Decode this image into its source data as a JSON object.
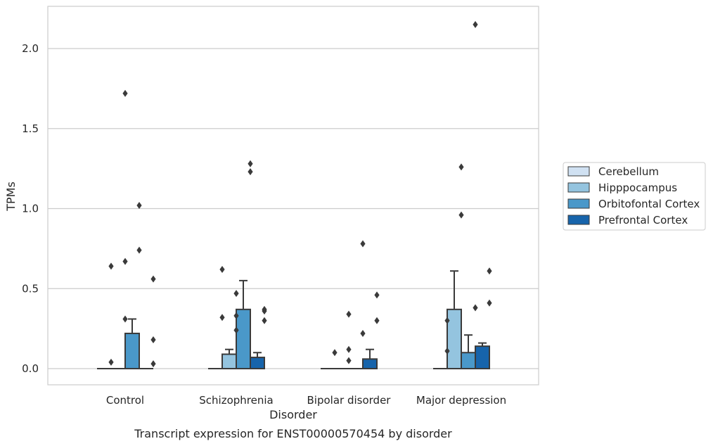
{
  "chart_data": {
    "type": "bar",
    "xlabel": "Disorder",
    "ylabel": "TPMs",
    "caption": "Transcript expression for ENST00000570454 by disorder",
    "ylim": [
      -0.1,
      2.27
    ],
    "yticks": [
      0.0,
      0.5,
      1.0,
      1.5,
      2.0
    ],
    "ytick_labels": [
      "0.0",
      "0.5",
      "1.0",
      "1.5",
      "2.0"
    ],
    "grid": true,
    "legend_position": "right",
    "categories": [
      "Control",
      "Schizophrenia",
      "Bipolar disorder",
      "Major depression"
    ],
    "series": [
      {
        "name": "Cerebellum",
        "color": "#d0e1f2",
        "values": [
          0.0,
          0.0,
          0.0,
          0.0
        ],
        "error_upper": [
          null,
          null,
          null,
          null
        ],
        "outliers": [
          [],
          [],
          [],
          []
        ]
      },
      {
        "name": "Hipppocampus",
        "color": "#94c4df",
        "values": [
          0.0,
          0.09,
          0.0,
          0.37
        ],
        "error_upper": [
          null,
          0.12,
          null,
          0.61
        ],
        "outliers": [
          [
            0.64,
            0.04
          ],
          [
            0.62,
            0.32
          ],
          [
            0.1
          ],
          [
            0.3,
            0.11
          ]
        ]
      },
      {
        "name": "Orbitofontal Cortex",
        "color": "#4a98c9",
        "values": [
          0.22,
          0.37,
          0.0,
          0.1
        ],
        "error_upper": [
          0.31,
          0.55,
          null,
          0.21
        ],
        "outliers": [
          [
            1.72,
            0.67,
            0.31
          ],
          [
            0.47,
            0.33,
            0.24
          ],
          [
            0.34,
            0.12,
            0.05
          ],
          [
            1.26,
            0.96
          ]
        ]
      },
      {
        "name": "Prefrontal Cortex",
        "color": "#1764ab",
        "values": [
          0.0,
          0.07,
          0.06,
          0.14
        ],
        "error_upper": [
          null,
          0.1,
          0.12,
          0.16
        ],
        "outliers": [
          [
            1.02,
            0.74
          ],
          [
            1.28,
            1.23
          ],
          [
            0.78,
            0.22
          ],
          [
            2.15,
            0.38
          ]
        ]
      }
    ],
    "extra_outliers": [
      {
        "category": 0,
        "offset": 1.5,
        "values": [
          0.56,
          0.18,
          0.03
        ]
      },
      {
        "category": 1,
        "offset": 1.5,
        "values": [
          0.37,
          0.36,
          0.3
        ]
      },
      {
        "category": 2,
        "offset": 1.5,
        "values": [
          0.46,
          0.3
        ]
      },
      {
        "category": 3,
        "offset": 1.5,
        "values": [
          0.61,
          0.41
        ]
      }
    ]
  }
}
